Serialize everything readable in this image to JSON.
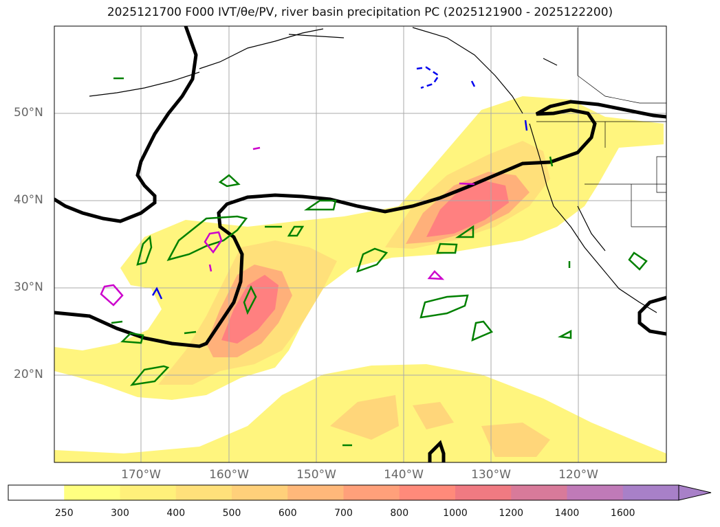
{
  "title": "2025121700 F000 IVT/θe/PV, river basin precipitation PC (2025121900 - 2025122200)",
  "map": {
    "lat_labels": [
      "50°N",
      "40°N",
      "30°N",
      "20°N"
    ],
    "lon_labels": [
      "170°W",
      "160°W",
      "150°W",
      "140°W",
      "130°W",
      "120°W"
    ]
  },
  "colorbar": {
    "levels": [
      "250",
      "300",
      "400",
      "500",
      "600",
      "700",
      "800",
      "1000",
      "1200",
      "1400",
      "1600"
    ],
    "colors": [
      "#ffffff",
      "#ffff80",
      "#fff07a",
      "#ffe07a",
      "#ffd07a",
      "#ffb87a",
      "#ffa07a",
      "#ff8a7a",
      "#f07a82",
      "#d87a9a",
      "#c07ab8",
      "#a880c8"
    ]
  },
  "colors": {
    "ivt_light": "#fff57e",
    "ivt_mid": "#ffd67a",
    "ivt_high": "#ff9a7a",
    "ivt_core": "#ff8080",
    "thetae_line": "#000000",
    "pv_line": "#008000",
    "magenta_line": "#cc00cc",
    "blue_line": "#0000ee"
  }
}
